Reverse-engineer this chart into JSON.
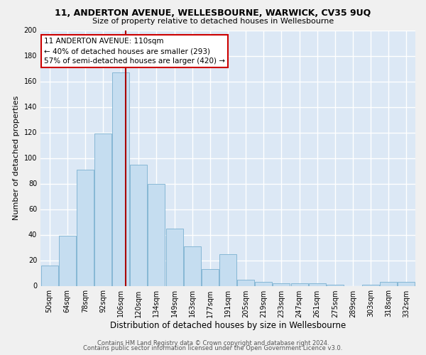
{
  "title": "11, ANDERTON AVENUE, WELLESBOURNE, WARWICK, CV35 9UQ",
  "subtitle": "Size of property relative to detached houses in Wellesbourne",
  "xlabel": "Distribution of detached houses by size in Wellesbourne",
  "ylabel": "Number of detached properties",
  "categories": [
    "50sqm",
    "64sqm",
    "78sqm",
    "92sqm",
    "106sqm",
    "120sqm",
    "134sqm",
    "149sqm",
    "163sqm",
    "177sqm",
    "191sqm",
    "205sqm",
    "219sqm",
    "233sqm",
    "247sqm",
    "261sqm",
    "275sqm",
    "289sqm",
    "303sqm",
    "318sqm",
    "332sqm"
  ],
  "bar_values": [
    16,
    39,
    91,
    119,
    167,
    95,
    80,
    45,
    31,
    13,
    25,
    5,
    3,
    2,
    2,
    2,
    1,
    0,
    1,
    3,
    3
  ],
  "bar_color": "#c5ddf0",
  "bar_edge_color": "#7ab0d0",
  "vline_pos": 4.27,
  "vline_color": "#aa0000",
  "annotation_text": "11 ANDERTON AVENUE: 110sqm\n← 40% of detached houses are smaller (293)\n57% of semi-detached houses are larger (420) →",
  "annotation_box_facecolor": "#ffffff",
  "annotation_box_edgecolor": "#cc0000",
  "ylim": [
    0,
    200
  ],
  "yticks": [
    0,
    20,
    40,
    60,
    80,
    100,
    120,
    140,
    160,
    180,
    200
  ],
  "background_color": "#dce8f5",
  "grid_color": "#ffffff",
  "fig_facecolor": "#f0f0f0",
  "title_fontsize": 9,
  "subtitle_fontsize": 8,
  "ylabel_fontsize": 8,
  "xlabel_fontsize": 8.5,
  "tick_fontsize": 7,
  "annot_fontsize": 7.5,
  "footer_line1": "Contains HM Land Registry data © Crown copyright and database right 2024.",
  "footer_line2": "Contains public sector information licensed under the Open Government Licence v3.0.",
  "footer_fontsize": 6
}
